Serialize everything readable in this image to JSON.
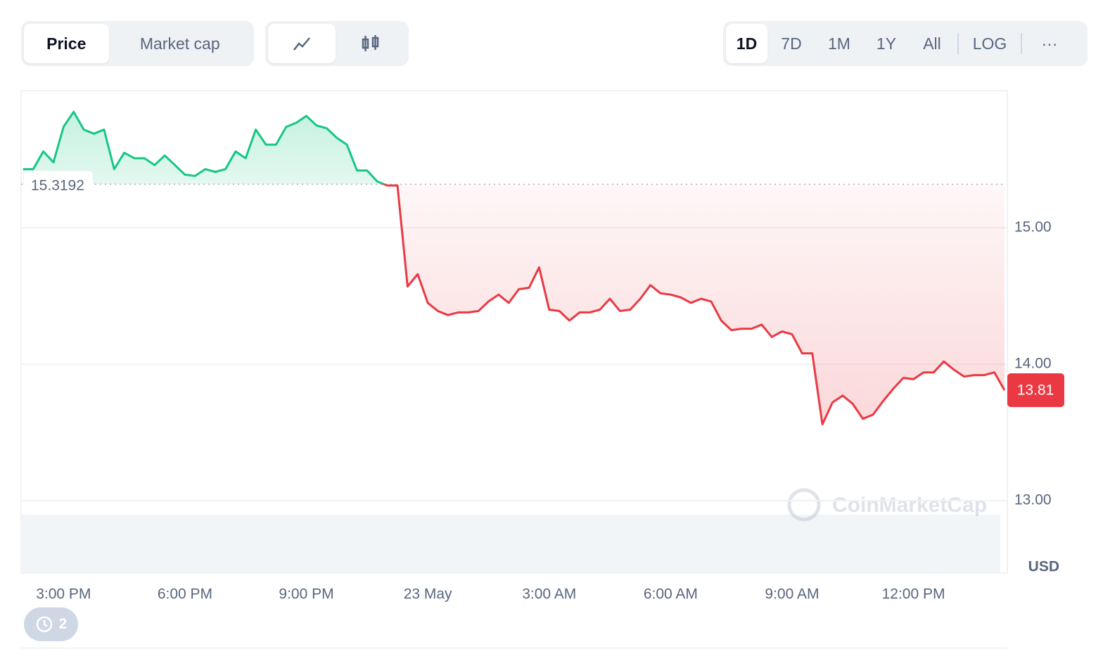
{
  "controls": {
    "chart_kind": [
      "Price",
      "Market cap"
    ],
    "ranges": [
      "1D",
      "7D",
      "1M",
      "1Y",
      "All",
      "LOG"
    ],
    "more": "···"
  },
  "chart_data": {
    "type": "line",
    "categories": [
      null,
      null,
      null,
      null,
      "3:00 PM",
      null,
      null,
      null,
      null,
      null,
      null,
      null,
      null,
      null,
      null,
      null,
      "6:00 PM",
      null,
      null,
      null,
      null,
      null,
      null,
      null,
      null,
      null,
      null,
      null,
      "9:00 PM",
      null,
      null,
      null,
      null,
      null,
      null,
      null,
      null,
      null,
      null,
      null,
      "23 May",
      null,
      null,
      null,
      null,
      null,
      null,
      null,
      null,
      null,
      null,
      null,
      "3:00 AM",
      null,
      null,
      null,
      null,
      null,
      null,
      null,
      null,
      null,
      null,
      null,
      "6:00 AM",
      null,
      null,
      null,
      null,
      null,
      null,
      null,
      null,
      null,
      null,
      null,
      "9:00 AM",
      null,
      null,
      null,
      null,
      null,
      null,
      null,
      null,
      null,
      null,
      null,
      "12:00 PM",
      null,
      null,
      null,
      null,
      null,
      null,
      null,
      null,
      null
    ],
    "values": [
      15.43,
      15.43,
      15.56,
      15.48,
      15.74,
      15.85,
      15.72,
      15.69,
      15.72,
      15.43,
      15.55,
      15.51,
      15.51,
      15.46,
      15.53,
      15.46,
      15.39,
      15.38,
      15.43,
      15.41,
      15.43,
      15.56,
      15.51,
      15.72,
      15.61,
      15.61,
      15.74,
      15.77,
      15.82,
      15.75,
      15.73,
      15.66,
      15.61,
      15.42,
      15.42,
      15.34,
      15.31,
      15.31,
      14.57,
      14.66,
      14.45,
      14.39,
      14.36,
      14.38,
      14.38,
      14.39,
      14.46,
      14.51,
      14.45,
      14.55,
      14.56,
      14.71,
      14.4,
      14.39,
      14.32,
      14.38,
      14.38,
      14.4,
      14.48,
      14.39,
      14.4,
      14.48,
      14.58,
      14.52,
      14.51,
      14.49,
      14.45,
      14.48,
      14.46,
      14.32,
      14.25,
      14.26,
      14.26,
      14.29,
      14.2,
      14.24,
      14.22,
      14.08,
      14.08,
      13.56,
      13.72,
      13.77,
      13.71,
      13.6,
      13.63,
      13.73,
      13.82,
      13.9,
      13.89,
      13.94,
      13.94,
      14.02,
      13.96,
      13.91,
      13.92,
      13.92,
      13.94,
      13.81
    ],
    "baseline": 15.3192,
    "up_color": "#16c784",
    "down_color": "#ea3943",
    "ylim": [
      12.47,
      16.0
    ],
    "yticks": [
      {
        "value": 13,
        "label": "13.00"
      },
      {
        "value": 14,
        "label": "14.00"
      },
      {
        "value": 15,
        "label": "15.00"
      }
    ],
    "grid": true,
    "currency": "USD",
    "watermark": "CoinMarketCap"
  },
  "history_count": 2
}
